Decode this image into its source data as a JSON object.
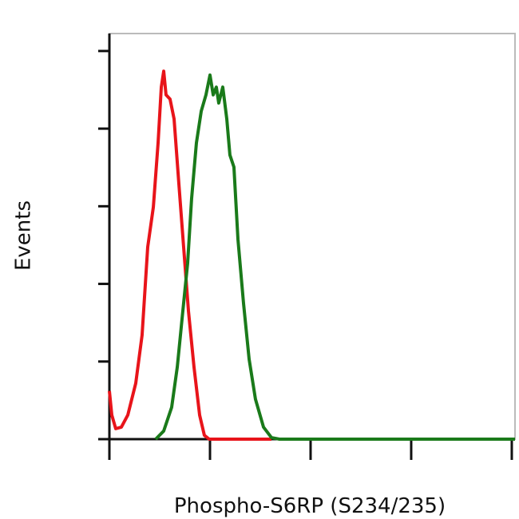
{
  "chart_data": {
    "type": "line",
    "x_label": "Phospho-S6RP (S234/235)",
    "y_label": "Events",
    "xlim": [
      0,
      4.032
    ],
    "xticks": [
      0,
      1,
      2,
      3,
      4
    ],
    "ylim": [
      0,
      104.5
    ],
    "yticks": [
      0,
      20,
      40,
      60,
      80,
      100
    ],
    "series": [
      {
        "color": "#e8141a",
        "x": [
          0,
          0.024,
          0.063,
          0.119,
          0.183,
          0.262,
          0.325,
          0.381,
          0.437,
          0.484,
          0.516,
          0.54,
          0.563,
          0.603,
          0.643,
          0.69,
          0.738,
          0.786,
          0.841,
          0.897,
          0.944,
          0.992,
          1.611
        ],
        "values": [
          12.4,
          6.2,
          2.7,
          3.1,
          6.2,
          14.4,
          26.8,
          49.5,
          59.8,
          76.3,
          90.7,
          94.8,
          88.7,
          87.6,
          82.5,
          66.0,
          49.5,
          33.0,
          18.6,
          6.2,
          1.0,
          0,
          0
        ]
      },
      {
        "color": "#1a7a1a",
        "x": [
          0.46,
          0.54,
          0.619,
          0.675,
          0.722,
          0.778,
          0.817,
          0.865,
          0.913,
          0.96,
          1.0,
          1.032,
          1.063,
          1.087,
          1.127,
          1.167,
          1.198,
          1.238,
          1.278,
          1.333,
          1.389,
          1.452,
          1.532,
          1.611,
          1.69,
          4.032
        ],
        "values": [
          0,
          2.1,
          8.2,
          18.6,
          30.9,
          45.4,
          61.9,
          76.3,
          84.5,
          88.7,
          93.8,
          88.7,
          90.7,
          86.6,
          90.7,
          82.5,
          73.2,
          70.1,
          51.5,
          35.1,
          20.6,
          10.3,
          3.1,
          0.4,
          0,
          0
        ]
      }
    ]
  }
}
